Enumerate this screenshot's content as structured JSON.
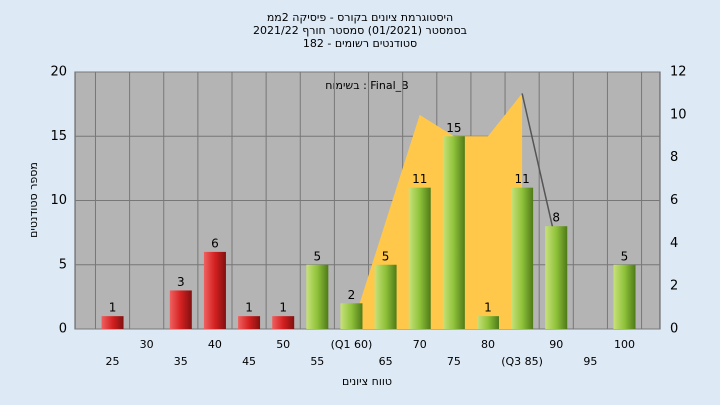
{
  "chart_data": {
    "type": "bar",
    "title": "היסטוגרמת ציונים בקורס - פיסיקה 2ממ",
    "subtitle": "בסמסטר  (01/2021)  סמסטר חורף 2021/22",
    "subtitle2": "סטודנטים רשומים - 182",
    "annotation": "בשימוח : Final_B",
    "x_label": "טווח ציונים",
    "y_label": "מספר סטודנטים",
    "categories": [
      "25",
      "30",
      "35",
      "40",
      "45",
      "50",
      "55",
      "(Q1 60)",
      "65",
      "70",
      "75",
      "80",
      "(Q3 85)",
      "90",
      "95",
      "100"
    ],
    "values": [
      1,
      0,
      3,
      6,
      1,
      1,
      5,
      2,
      5,
      11,
      15,
      1,
      11,
      8,
      0,
      5
    ],
    "colors": [
      "#e02a2a",
      "#e02a2a",
      "#e02a2a",
      "#e02a2a",
      "#e02a2a",
      "#e02a2a",
      "#8fc23a",
      "#8fc23a",
      "#8fc23a",
      "#8fc23a",
      "#8fc23a",
      "#8fc23a",
      "#8fc23a",
      "#8fc23a",
      "#8fc23a",
      "#8fc23a"
    ],
    "series": [
      {
        "name": "area",
        "color": "#ffc84a",
        "axis": "y2",
        "values": [
          null,
          null,
          null,
          null,
          null,
          null,
          null,
          0,
          5,
          10,
          9,
          9,
          11,
          null,
          null,
          null
        ]
      },
      {
        "name": "line",
        "color": "#555555",
        "axis": "y2",
        "values": [
          null,
          null,
          null,
          null,
          null,
          null,
          null,
          null,
          null,
          null,
          null,
          null,
          11,
          4,
          null,
          null
        ]
      }
    ],
    "ylim": [
      0,
      20
    ],
    "yticks": [
      0,
      5,
      10,
      15,
      20
    ],
    "y2lim": [
      0,
      12
    ],
    "y2ticks": [
      0,
      2,
      4,
      6,
      8,
      10,
      12
    ],
    "grid": true
  }
}
